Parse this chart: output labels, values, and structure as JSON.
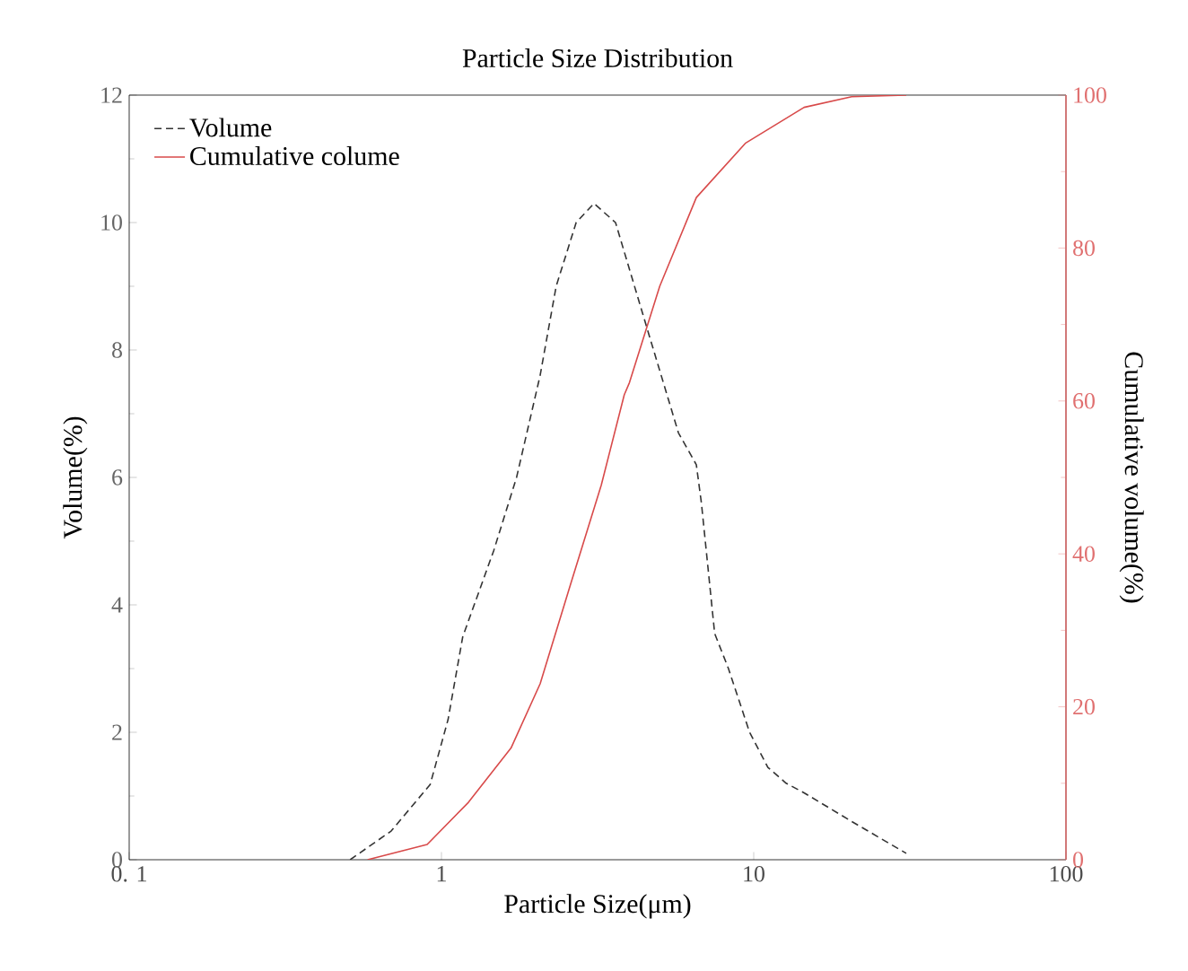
{
  "chart_data": {
    "type": "line",
    "title": "Particle Size Distribution",
    "xlabel": "Particle Size(μm)",
    "ylabel": "Volume(%)",
    "y2label": "Cumulative volume(%)",
    "log": "x",
    "xlim": [
      0.1,
      100
    ],
    "xticks": [
      {
        "value": 0.1,
        "label": "0. 1"
      },
      1,
      10,
      100
    ],
    "ylim": [
      0,
      12
    ],
    "yticks": [
      0,
      2,
      4,
      6,
      8,
      10,
      12
    ],
    "y2lim": [
      0,
      100
    ],
    "y2ticks": [
      0,
      20,
      40,
      60,
      80,
      100
    ],
    "legend": "top left",
    "grid": false,
    "marker": "none",
    "series": [
      {
        "name": "Volume",
        "color": "#333333",
        "line_style": "dashed",
        "x": [
          0.51,
          0.69,
          0.92,
          1.05,
          1.17,
          1.47,
          1.74,
          2.07,
          2.33,
          2.7,
          3.08,
          3.61,
          4.58,
          5.74,
          6.55,
          6.8,
          7.5,
          8.3,
          9.7,
          11.1,
          12.7,
          14.5,
          20.6,
          30.8
        ],
        "values": [
          0,
          0.45,
          1.18,
          2.2,
          3.5,
          4.85,
          6.0,
          7.6,
          9.0,
          10.0,
          10.3,
          10.0,
          8.3,
          6.7,
          6.2,
          5.6,
          3.55,
          3.0,
          2.0,
          1.45,
          1.2,
          1.05,
          0.6,
          0.1
        ]
      },
      {
        "name": "Cumulative colume",
        "color": "#d84a4a",
        "line_style": "solid",
        "axis": "y2",
        "x": [
          0.58,
          0.9,
          1.22,
          1.67,
          2.07,
          2.59,
          3.25,
          3.85,
          4.0,
          5.0,
          6.55,
          9.4,
          14.5,
          20.6,
          30.8
        ],
        "values": [
          0,
          2,
          7.5,
          14.6,
          23,
          36,
          49,
          60.8,
          62.4,
          75,
          86.6,
          93.7,
          98.4,
          99.8,
          100
        ]
      }
    ]
  }
}
